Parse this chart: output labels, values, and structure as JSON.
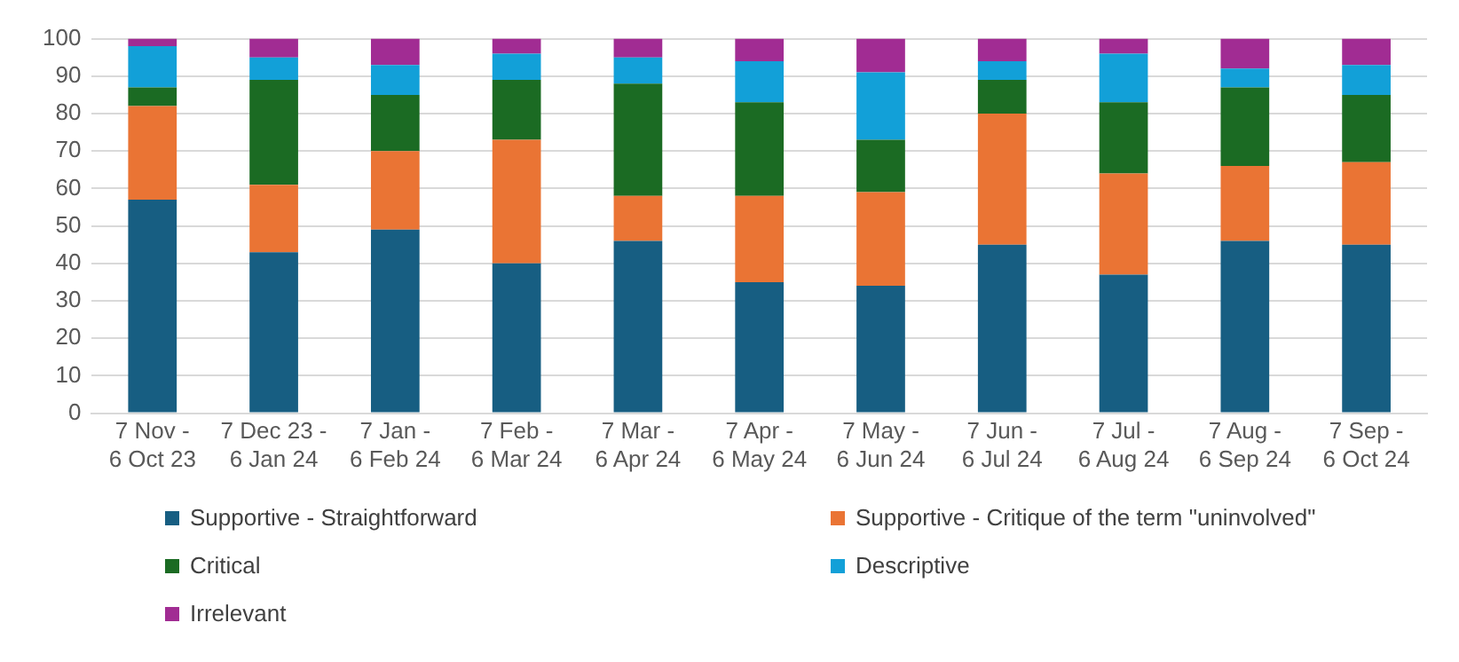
{
  "chart_data": {
    "type": "bar",
    "stacked": true,
    "categories": [
      "7 Nov - 6 Oct 23",
      "7 Dec 23 - 6 Jan 24",
      "7 Jan - 6 Feb 24",
      "7 Feb - 6 Mar 24",
      "7 Mar - 6 Apr 24",
      "7 Apr - 6 May 24",
      "7 May - 6 Jun 24",
      "7 Jun - 6 Jul 24",
      "7 Jul - 6 Aug 24",
      "7 Aug - 6 Sep 24",
      "7 Sep - 6 Oct 24"
    ],
    "series": [
      {
        "name": "Supportive - Straightforward",
        "color": "#175e82",
        "values": [
          57,
          43,
          49,
          40,
          46,
          35,
          34,
          45,
          37,
          46,
          45
        ]
      },
      {
        "name": "Supportive - Critique of the term \"uninvolved\"",
        "color": "#ea7434",
        "values": [
          25,
          18,
          21,
          33,
          12,
          23,
          25,
          35,
          27,
          20,
          22
        ]
      },
      {
        "name": "Critical",
        "color": "#1b6b23",
        "values": [
          5,
          28,
          15,
          16,
          30,
          25,
          14,
          9,
          19,
          21,
          18
        ]
      },
      {
        "name": "Descriptive",
        "color": "#12a0d8",
        "values": [
          11,
          6,
          8,
          7,
          7,
          11,
          18,
          5,
          13,
          5,
          8
        ]
      },
      {
        "name": "Irrelevant",
        "color": "#a12c93",
        "values": [
          2,
          5,
          7,
          4,
          5,
          6,
          9,
          6,
          4,
          8,
          7
        ]
      }
    ],
    "ylim": [
      0,
      100
    ],
    "yticks": [
      0,
      10,
      20,
      30,
      40,
      50,
      60,
      70,
      80,
      90,
      100
    ],
    "grid": "y",
    "legend": "bottom"
  }
}
